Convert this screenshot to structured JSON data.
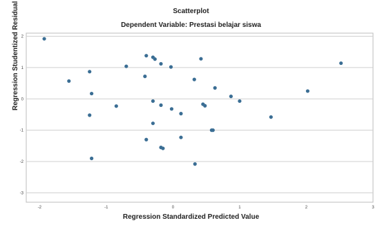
{
  "chart_data": {
    "type": "scatter",
    "title": "Scatterplot",
    "subtitle": "Dependent Variable: Prestasi belajar siswa",
    "xlabel": "Regression Standardized Predicted Value",
    "ylabel": "Regression Studentized Residual",
    "xlim": [
      -2.2,
      3.0
    ],
    "ylim": [
      -3.3,
      2.1
    ],
    "x_ticks": [
      -2,
      -1,
      0,
      1,
      2,
      3
    ],
    "y_ticks": [
      2,
      1,
      0,
      -1,
      -2,
      -3
    ],
    "grid": "horizontal",
    "point_color": "#3b6e94",
    "points": [
      {
        "x": -1.93,
        "y": 1.92
      },
      {
        "x": -1.56,
        "y": 0.57
      },
      {
        "x": -1.25,
        "y": 0.87
      },
      {
        "x": -1.22,
        "y": 0.17
      },
      {
        "x": -1.25,
        "y": -0.52
      },
      {
        "x": -1.22,
        "y": -1.9
      },
      {
        "x": -0.85,
        "y": -0.23
      },
      {
        "x": -0.7,
        "y": 1.04
      },
      {
        "x": -0.4,
        "y": 1.38
      },
      {
        "x": -0.42,
        "y": 0.72
      },
      {
        "x": -0.4,
        "y": -1.3
      },
      {
        "x": -0.3,
        "y": 1.33
      },
      {
        "x": -0.27,
        "y": 1.27
      },
      {
        "x": -0.3,
        "y": -0.07
      },
      {
        "x": -0.3,
        "y": -0.78
      },
      {
        "x": -0.18,
        "y": 1.12
      },
      {
        "x": -0.18,
        "y": -0.2
      },
      {
        "x": -0.15,
        "y": -1.58
      },
      {
        "x": -0.18,
        "y": -1.55
      },
      {
        "x": -0.03,
        "y": 1.02
      },
      {
        "x": -0.02,
        "y": -0.32
      },
      {
        "x": 0.12,
        "y": -0.47
      },
      {
        "x": 0.12,
        "y": -1.23
      },
      {
        "x": 0.32,
        "y": 0.62
      },
      {
        "x": 0.33,
        "y": -2.08
      },
      {
        "x": 0.42,
        "y": 1.28
      },
      {
        "x": 0.45,
        "y": -0.17
      },
      {
        "x": 0.48,
        "y": -0.22
      },
      {
        "x": 0.58,
        "y": -1.0
      },
      {
        "x": 0.6,
        "y": -1.0
      },
      {
        "x": 0.63,
        "y": 0.35
      },
      {
        "x": 0.87,
        "y": 0.08
      },
      {
        "x": 1.0,
        "y": -0.07
      },
      {
        "x": 1.47,
        "y": -0.58
      },
      {
        "x": 2.02,
        "y": 0.25
      },
      {
        "x": 2.52,
        "y": 1.14
      }
    ]
  }
}
